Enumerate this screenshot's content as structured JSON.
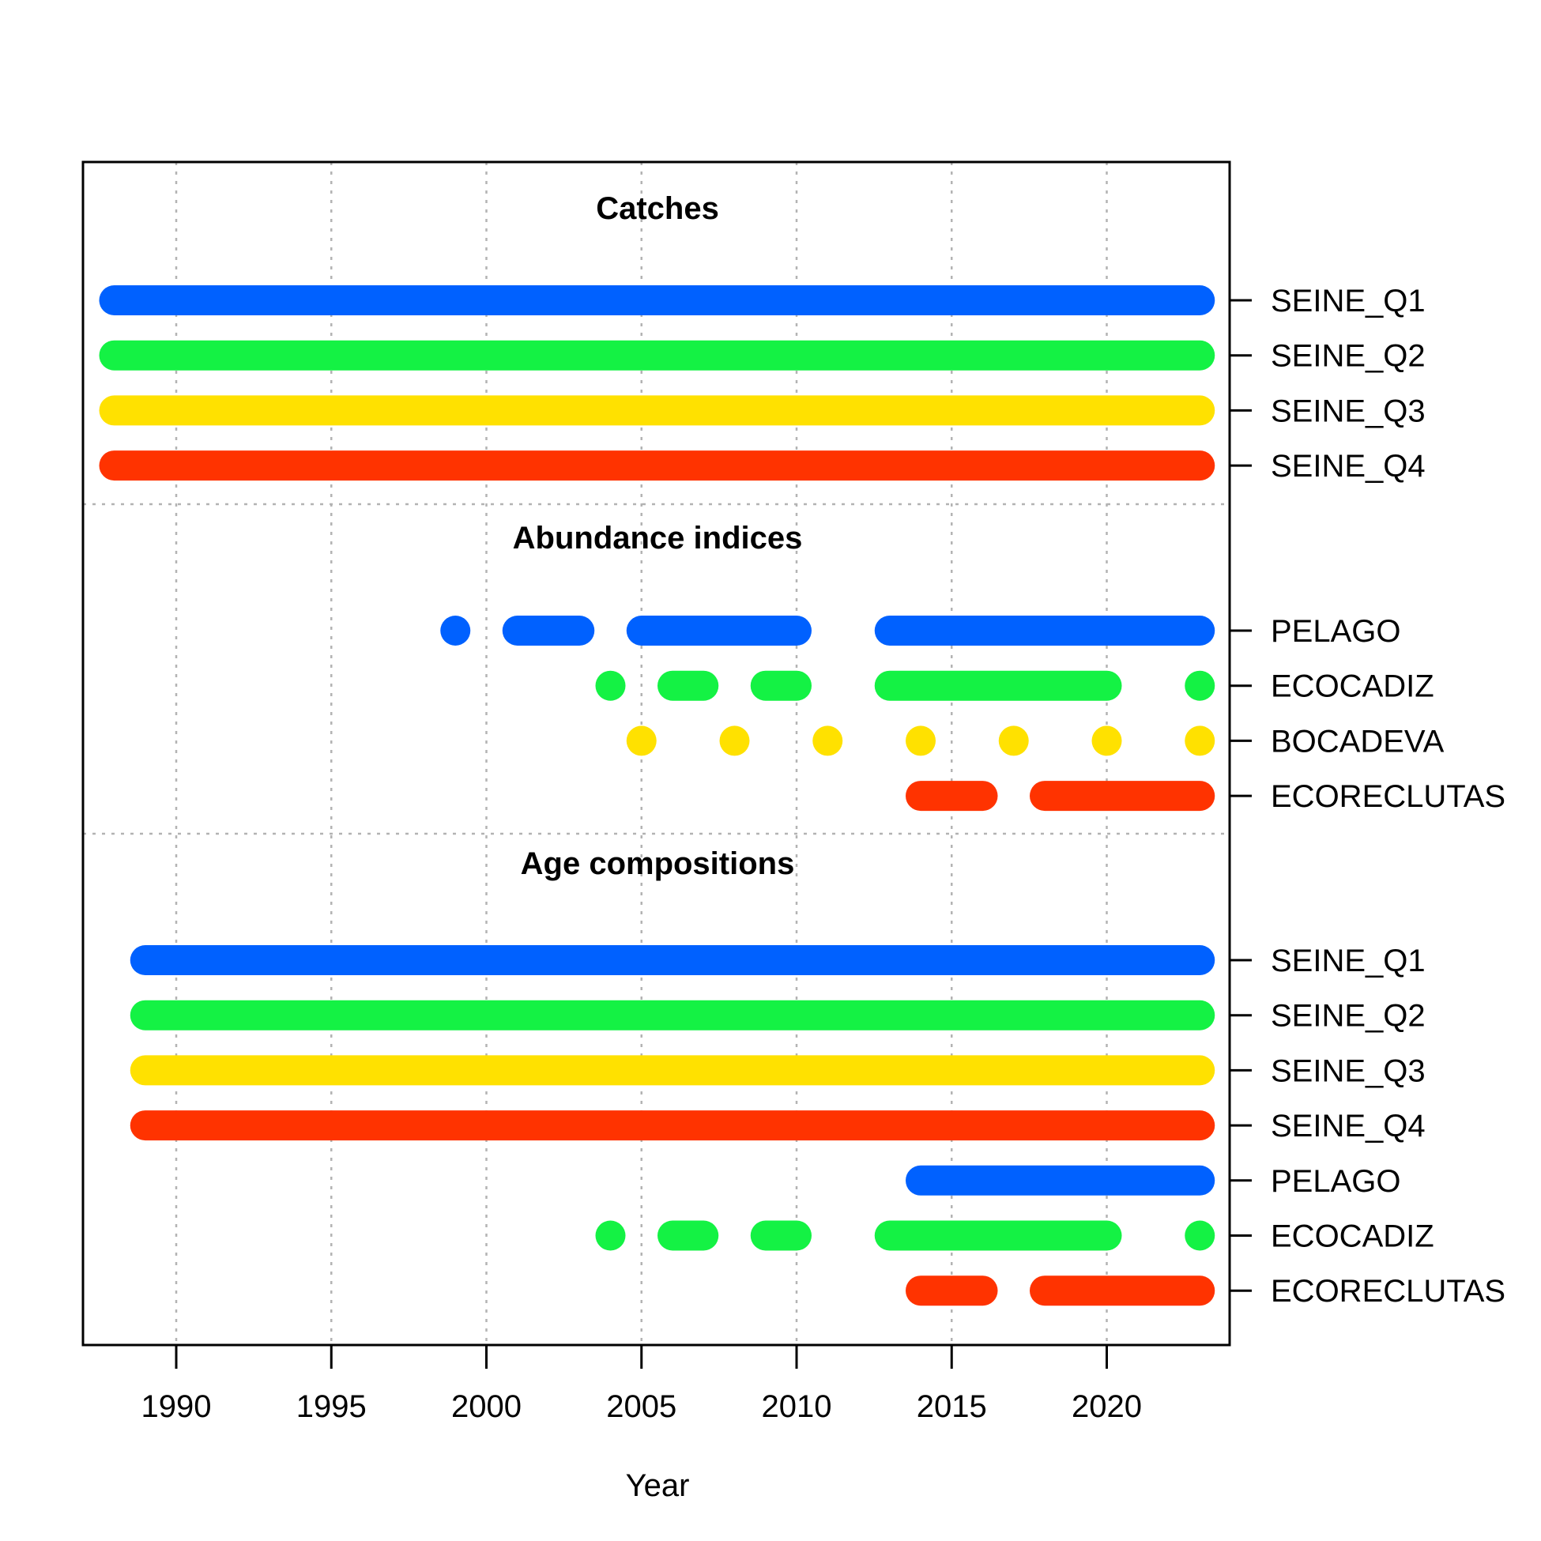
{
  "chart_data": {
    "type": "timeline",
    "xlabel": "Year",
    "xlim": [
      1987,
      2024
    ],
    "x_ticks": [
      1990,
      1995,
      2000,
      2005,
      2010,
      2015,
      2020
    ],
    "grid": true,
    "colors": {
      "blue": "#0061FF",
      "green": "#14F244",
      "yellow": "#FFE100",
      "red": "#FF3300"
    },
    "sections": [
      {
        "title": "Catches",
        "series": [
          {
            "name": "SEINE_Q1",
            "color": "#0061FF",
            "segments": [
              [
                1988,
                2023
              ]
            ]
          },
          {
            "name": "SEINE_Q2",
            "color": "#14F244",
            "segments": [
              [
                1988,
                2023
              ]
            ]
          },
          {
            "name": "SEINE_Q3",
            "color": "#FFE100",
            "segments": [
              [
                1988,
                2023
              ]
            ]
          },
          {
            "name": "SEINE_Q4",
            "color": "#FF3300",
            "segments": [
              [
                1988,
                2023
              ]
            ]
          }
        ]
      },
      {
        "title": "Abundance indices",
        "series": [
          {
            "name": "PELAGO",
            "color": "#0061FF",
            "segments": [
              [
                1999,
                1999
              ],
              [
                2001,
                2003
              ],
              [
                2005,
                2010
              ],
              [
                2013,
                2023
              ]
            ]
          },
          {
            "name": "ECOCADIZ",
            "color": "#14F244",
            "segments": [
              [
                2004,
                2004
              ],
              [
                2006,
                2007
              ],
              [
                2009,
                2010
              ],
              [
                2013,
                2020
              ],
              [
                2023,
                2023
              ]
            ]
          },
          {
            "name": "BOCADEVA",
            "color": "#FFE100",
            "segments": [
              [
                2005,
                2005
              ],
              [
                2008,
                2008
              ],
              [
                2011,
                2011
              ],
              [
                2014,
                2014
              ],
              [
                2017,
                2017
              ],
              [
                2020,
                2020
              ],
              [
                2023,
                2023
              ]
            ]
          },
          {
            "name": "ECORECLUTAS",
            "color": "#FF3300",
            "segments": [
              [
                2014,
                2016
              ],
              [
                2018,
                2023
              ]
            ]
          }
        ]
      },
      {
        "title": "Age compositions",
        "series": [
          {
            "name": "SEINE_Q1",
            "color": "#0061FF",
            "segments": [
              [
                1989,
                2023
              ]
            ]
          },
          {
            "name": "SEINE_Q2",
            "color": "#14F244",
            "segments": [
              [
                1989,
                2023
              ]
            ]
          },
          {
            "name": "SEINE_Q3",
            "color": "#FFE100",
            "segments": [
              [
                1989,
                2023
              ]
            ]
          },
          {
            "name": "SEINE_Q4",
            "color": "#FF3300",
            "segments": [
              [
                1989,
                2023
              ]
            ]
          },
          {
            "name": "PELAGO",
            "color": "#0061FF",
            "segments": [
              [
                2014,
                2023
              ]
            ]
          },
          {
            "name": "ECOCADIZ",
            "color": "#14F244",
            "segments": [
              [
                2004,
                2004
              ],
              [
                2006,
                2007
              ],
              [
                2009,
                2010
              ],
              [
                2013,
                2020
              ],
              [
                2023,
                2023
              ]
            ]
          },
          {
            "name": "ECORECLUTAS",
            "color": "#FF3300",
            "segments": [
              [
                2014,
                2016
              ],
              [
                2018,
                2023
              ]
            ]
          }
        ]
      }
    ]
  }
}
